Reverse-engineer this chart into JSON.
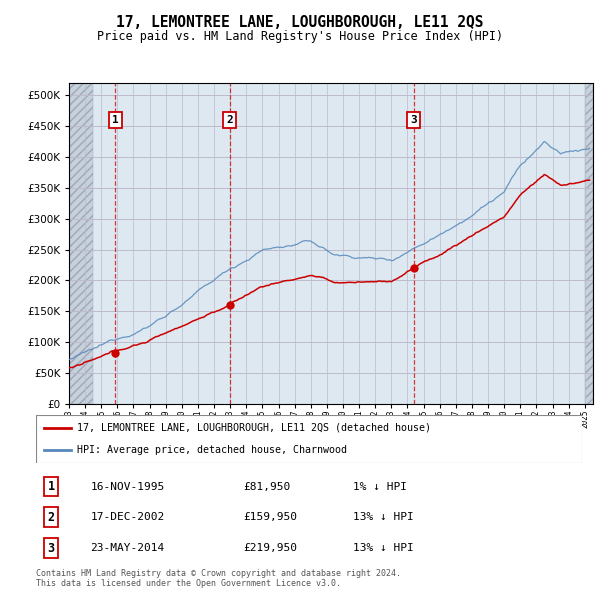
{
  "title": "17, LEMONTREE LANE, LOUGHBOROUGH, LE11 2QS",
  "subtitle": "Price paid vs. HM Land Registry's House Price Index (HPI)",
  "ytick_values": [
    0,
    50000,
    100000,
    150000,
    200000,
    250000,
    300000,
    350000,
    400000,
    450000,
    500000
  ],
  "ylim": [
    0,
    520000
  ],
  "xlim_start": 1993.0,
  "xlim_end": 2025.5,
  "sale_dates": [
    1995.88,
    2002.96,
    2014.39
  ],
  "sale_prices": [
    81950,
    159950,
    219950
  ],
  "legend_label_red": "17, LEMONTREE LANE, LOUGHBOROUGH, LE11 2QS (detached house)",
  "legend_label_blue": "HPI: Average price, detached house, Charnwood",
  "transactions": [
    {
      "num": 1,
      "date": "16-NOV-1995",
      "price": "£81,950",
      "pct": "1% ↓ HPI"
    },
    {
      "num": 2,
      "date": "17-DEC-2002",
      "price": "£159,950",
      "pct": "13% ↓ HPI"
    },
    {
      "num": 3,
      "date": "23-MAY-2014",
      "price": "£219,950",
      "pct": "13% ↓ HPI"
    }
  ],
  "footnote": "Contains HM Land Registry data © Crown copyright and database right 2024.\nThis data is licensed under the Open Government Licence v3.0.",
  "red_line_color": "#cc0000",
  "blue_line_color": "#5588bb",
  "vline_color": "#cc0000",
  "number_box_color": "#cc0000",
  "plot_bg_color": "#dde8f0",
  "hatch_bg_color": "#c8d0dc",
  "grid_color": "#bbbbcc"
}
